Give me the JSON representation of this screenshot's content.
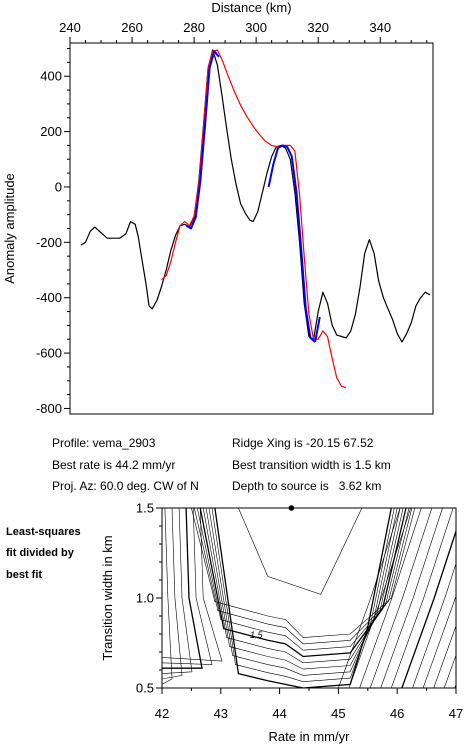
{
  "info": {
    "profile": "Profile: vema_2903",
    "best_rate": "Best rate is 44.2 mm/yr",
    "proj_az": "Proj. Az: 60.0 deg. CW of N",
    "ridge_xing": "Ridge Xing is -20.15 67.52",
    "best_transition": "Best transition width is 1.5 km",
    "depth": "Depth to source is   3.62 km"
  },
  "side_note": [
    "Least-squares",
    "fit divided by",
    "best fit"
  ],
  "chart_data": [
    {
      "type": "line",
      "xlabel": "Distance (km)",
      "ylabel": "Anomaly amplitude",
      "xlim": [
        240,
        357
      ],
      "ylim": [
        -820,
        520
      ],
      "xticks": [
        240,
        260,
        280,
        300,
        320,
        340
      ],
      "yticks": [
        400,
        200,
        0,
        -200,
        -400,
        -600,
        -800
      ],
      "x_axis_position": "top",
      "grid": false,
      "colors": {
        "observed": "#000000",
        "model": "#ff0000",
        "fitted": "#0000ff"
      },
      "series": [
        {
          "key": "observed",
          "x": [
            243.5,
            245,
            246.5,
            248,
            250,
            252,
            254,
            256,
            258,
            259.5,
            261,
            262,
            263,
            264.5,
            265.5,
            266.5,
            268,
            269.5,
            271,
            272.5,
            274,
            275.5,
            277,
            278.5,
            280,
            281.5,
            283,
            284.5,
            286,
            287.5,
            289,
            290.5,
            292,
            293.5,
            295,
            296.5,
            298,
            299,
            300.5,
            302,
            303.5,
            305,
            306.5,
            308,
            309.5,
            311,
            312.5,
            314,
            315.5,
            317,
            318.5,
            320,
            321.5,
            323,
            324.5,
            326,
            327.5,
            329,
            330.5,
            332,
            333.5,
            335,
            336.5,
            338,
            339.5,
            341,
            342.5,
            344,
            345.5,
            347,
            348.5,
            350,
            351.5,
            353,
            354.5,
            356
          ],
          "y": [
            -210,
            -200,
            -160,
            -145,
            -165,
            -185,
            -185,
            -185,
            -170,
            -125,
            -135,
            -180,
            -250,
            -350,
            -430,
            -440,
            -410,
            -360,
            -300,
            -230,
            -175,
            -140,
            -135,
            -145,
            -110,
            20,
            220,
            430,
            495,
            440,
            330,
            210,
            100,
            10,
            -60,
            -95,
            -120,
            -125,
            -90,
            -20,
            50,
            110,
            145,
            150,
            140,
            100,
            -20,
            -200,
            -420,
            -540,
            -550,
            -450,
            -380,
            -420,
            -500,
            -535,
            -540,
            -545,
            -520,
            -460,
            -360,
            -240,
            -190,
            -240,
            -340,
            -400,
            -440,
            -480,
            -530,
            -560,
            -530,
            -490,
            -430,
            -400,
            -380,
            -390
          ]
        },
        {
          "key": "model",
          "x": [
            269.5,
            271,
            272.5,
            274,
            275.5,
            277,
            278.5,
            280,
            281.5,
            283,
            284.5,
            286,
            287.5,
            289,
            291,
            293,
            295,
            297,
            299,
            301,
            303,
            305,
            307,
            309,
            311,
            312.5,
            314,
            315.5,
            317,
            318.5,
            320,
            321.5,
            323,
            324.5,
            326,
            327.5,
            329
          ],
          "y": [
            -335,
            -320,
            -270,
            -200,
            -140,
            -125,
            -140,
            -105,
            10,
            210,
            430,
            490,
            495,
            460,
            400,
            345,
            295,
            255,
            220,
            190,
            165,
            150,
            145,
            150,
            150,
            130,
            -30,
            -250,
            -460,
            -550,
            -550,
            -520,
            -540,
            -620,
            -690,
            -720,
            -725
          ]
        },
        {
          "key": "fitted",
          "x": [
            304,
            305.5,
            307,
            308.5,
            310,
            311.5,
            313,
            314.5,
            316,
            317.5,
            319
          ],
          "y": [
            0,
            80,
            140,
            150,
            145,
            110,
            -20,
            -220,
            -440,
            -545,
            -560
          ]
        },
        {
          "key": "fitted",
          "x": [
            277.5,
            279,
            280.5,
            282,
            283.5,
            285,
            286.5,
            288
          ],
          "y": [
            -140,
            -150,
            -110,
            20,
            220,
            430,
            490,
            470
          ]
        },
        {
          "key": "fitted",
          "x": [
            319,
            320.5
          ],
          "y": [
            -560,
            -470
          ]
        }
      ]
    },
    {
      "type": "contour",
      "xlabel": "Rate in mm/yr",
      "ylabel": "Transition width in km",
      "xlim": [
        42,
        47
      ],
      "ylim": [
        0.5,
        1.5
      ],
      "xticks": [
        42,
        43,
        44,
        45,
        46,
        47
      ],
      "yticks": [
        0.5,
        1.0,
        1.5
      ],
      "ytick_labels": [
        "0.5",
        "1.0",
        "1.5"
      ],
      "best_fit_point": {
        "x": 44.2,
        "y": 1.5
      },
      "contour_label": "1.5"
    }
  ]
}
